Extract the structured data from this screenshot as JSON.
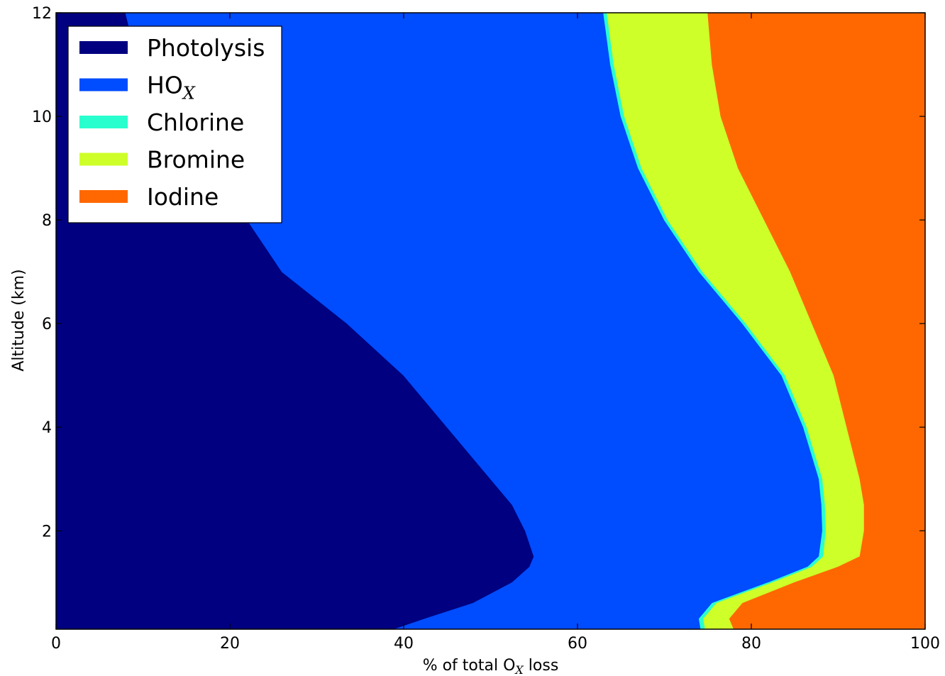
{
  "chart_data": {
    "type": "area",
    "stacked": true,
    "orientation": "horizontal",
    "xlabel": {
      "main": "% of total O",
      "sub": "X",
      "tail": " loss"
    },
    "ylabel": "Altitude (km)",
    "xlim": [
      0,
      100
    ],
    "ylim": [
      0.1,
      12
    ],
    "xticks": [
      0,
      20,
      40,
      60,
      80,
      100
    ],
    "yticks": [
      2,
      4,
      6,
      8,
      10,
      12
    ],
    "grid": false,
    "legend_position": "upper-left",
    "altitude_km": [
      0.1,
      0.3,
      0.6,
      1.0,
      1.3,
      1.5,
      2.0,
      2.5,
      3.0,
      4.0,
      5.0,
      6.0,
      7.0,
      8.0,
      9.0,
      10.0,
      11.0,
      12.0
    ],
    "series": [
      {
        "name": "Photolysis",
        "label_main": "Photolysis",
        "label_sub": "",
        "color": "#000080",
        "cumulative": [
          39,
          42.5,
          48,
          52.5,
          54.5,
          55,
          54,
          52.5,
          50,
          45,
          40,
          33.5,
          26,
          22,
          17,
          12,
          9.5,
          8
        ]
      },
      {
        "name": "HOX",
        "label_main": "HO",
        "label_sub": "X",
        "color": "#004cff",
        "cumulative": [
          74.2,
          74,
          75.5,
          82,
          86.5,
          87.8,
          88.2,
          88.1,
          87.8,
          86,
          83.5,
          79,
          74,
          70,
          67,
          65,
          63.8,
          63
        ]
      },
      {
        "name": "Chlorine",
        "label_main": "Chlorine",
        "label_sub": "",
        "color": "#29ffce",
        "cumulative": [
          74.7,
          74.5,
          76,
          82.5,
          87,
          88.3,
          88.6,
          88.5,
          88.2,
          86.4,
          83.9,
          79.4,
          74.4,
          70.4,
          67.4,
          65.4,
          64.2,
          63.4
        ]
      },
      {
        "name": "Bromine",
        "label_main": "Bromine",
        "label_sub": "",
        "color": "#ceff29",
        "cumulative": [
          78,
          77.5,
          79,
          85,
          90,
          92.5,
          93,
          93,
          92.5,
          91,
          89.5,
          87,
          84.5,
          81.5,
          78.5,
          76.5,
          75.5,
          75
        ]
      },
      {
        "name": "Iodine",
        "label_main": "Iodine",
        "label_sub": "",
        "color": "#ff6800",
        "cumulative": [
          100,
          100,
          100,
          100,
          100,
          100,
          100,
          100,
          100,
          100,
          100,
          100,
          100,
          100,
          100,
          100,
          100,
          100
        ]
      }
    ]
  }
}
